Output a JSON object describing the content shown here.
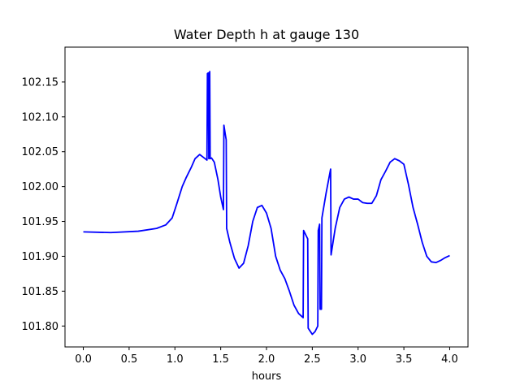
{
  "chart_data": {
    "type": "line",
    "title": "Water Depth h at gauge 130",
    "xlabel": "hours",
    "ylabel": "",
    "xlim": [
      -0.2,
      4.2
    ],
    "ylim": [
      101.77,
      102.2
    ],
    "x_ticks": [
      0.0,
      0.5,
      1.0,
      1.5,
      2.0,
      2.5,
      3.0,
      3.5,
      4.0
    ],
    "x_tick_labels": [
      "0.0",
      "0.5",
      "1.0",
      "1.5",
      "2.0",
      "2.5",
      "3.0",
      "3.5",
      "4.0"
    ],
    "y_ticks": [
      101.8,
      101.85,
      101.9,
      101.95,
      102.0,
      102.05,
      102.1,
      102.15
    ],
    "y_tick_labels": [
      "101.80",
      "101.85",
      "101.90",
      "101.95",
      "102.00",
      "102.05",
      "102.10",
      "102.15"
    ],
    "grid": false,
    "series": [
      {
        "name": "",
        "color": "#0000ff",
        "x": [
          0.0,
          0.3,
          0.6,
          0.8,
          0.9,
          0.97,
          1.02,
          1.08,
          1.12,
          1.18,
          1.22,
          1.27,
          1.31,
          1.35,
          1.355,
          1.365,
          1.37,
          1.38,
          1.385,
          1.4,
          1.43,
          1.47,
          1.5,
          1.53,
          1.535,
          1.55,
          1.56,
          1.565,
          1.6,
          1.65,
          1.7,
          1.75,
          1.8,
          1.85,
          1.9,
          1.95,
          2.0,
          2.05,
          2.1,
          2.15,
          2.2,
          2.25,
          2.3,
          2.35,
          2.4,
          2.405,
          2.45,
          2.455,
          2.5,
          2.53,
          2.56,
          2.565,
          2.58,
          2.585,
          2.6,
          2.605,
          2.65,
          2.7,
          2.705,
          2.75,
          2.8,
          2.85,
          2.9,
          2.95,
          3.0,
          3.05,
          3.1,
          3.15,
          3.2,
          3.25,
          3.3,
          3.35,
          3.4,
          3.45,
          3.5,
          3.55,
          3.6,
          3.65,
          3.7,
          3.75,
          3.8,
          3.85,
          3.9,
          3.95,
          4.0
        ],
        "y": [
          101.935,
          101.934,
          101.936,
          101.94,
          101.945,
          101.955,
          101.975,
          102.0,
          102.012,
          102.028,
          102.04,
          102.046,
          102.042,
          102.038,
          102.162,
          102.163,
          102.04,
          102.165,
          102.04,
          102.041,
          102.035,
          102.01,
          101.985,
          101.967,
          102.088,
          102.075,
          102.067,
          101.94,
          101.92,
          101.897,
          101.883,
          101.89,
          101.915,
          101.95,
          101.97,
          101.973,
          101.962,
          101.94,
          101.9,
          101.88,
          101.868,
          101.85,
          101.83,
          101.818,
          101.812,
          101.937,
          101.925,
          101.797,
          101.788,
          101.792,
          101.8,
          101.937,
          101.946,
          101.824,
          101.824,
          101.955,
          101.99,
          102.025,
          101.902,
          101.94,
          101.97,
          101.982,
          101.985,
          101.982,
          101.982,
          101.977,
          101.976,
          101.976,
          101.987,
          102.01,
          102.022,
          102.035,
          102.04,
          102.037,
          102.032,
          102.003,
          101.97,
          101.946,
          101.92,
          101.9,
          101.892,
          101.891,
          101.894,
          101.898,
          101.901
        ]
      }
    ]
  }
}
